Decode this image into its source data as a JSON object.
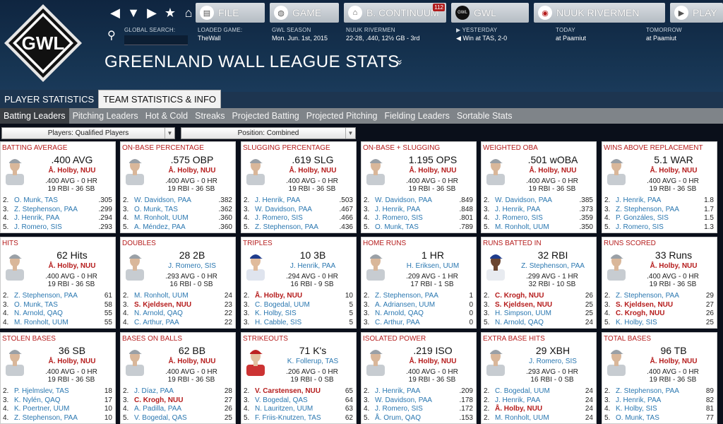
{
  "header": {
    "logo_text": "GWL",
    "nav_icons": [
      "back-icon",
      "menu-down-icon",
      "forward-icon",
      "star-icon",
      "home-icon"
    ],
    "buttons": [
      {
        "id": "file",
        "label": "FILE",
        "icon": "file-icon"
      },
      {
        "id": "game",
        "label": "GAME",
        "icon": "globe-icon"
      },
      {
        "id": "continuum",
        "label": "B. CONTINUUM",
        "icon": "home-icon",
        "badge": "112"
      },
      {
        "id": "gwl",
        "label": "GWL",
        "icon": "gwl-logo-icon"
      },
      {
        "id": "team",
        "label": "NUUK RIVERMEN",
        "icon": "team-logo-icon"
      },
      {
        "id": "play",
        "label": "PLAY",
        "icon": "play-icon"
      }
    ],
    "search_label": "GLOBAL SEARCH:",
    "search_value": "",
    "info": [
      {
        "label": "LOADED GAME:",
        "value": "TheWall"
      },
      {
        "label": "GWL SEASON",
        "value": "Mon. Jun. 1st, 2015"
      },
      {
        "label": "NUUK RIVERMEN",
        "value": "22-28, .440, 12½ GB - 3rd"
      },
      {
        "label": "YESTERDAY",
        "value": "Win at TAS, 2-0"
      },
      {
        "label": "TODAY",
        "value": "at Paamiut"
      },
      {
        "label": "TOMORROW",
        "value": "at Paamiut"
      }
    ],
    "title": "GREENLAND WALL LEAGUE STATS",
    "title_chevron": "»"
  },
  "tabs": [
    {
      "label": "PLAYER STATISTICS",
      "active": false
    },
    {
      "label": "TEAM STATISTICS & INFO",
      "active": true
    }
  ],
  "subnav": [
    {
      "label": "Batting Leaders",
      "active": true
    },
    {
      "label": "Pitching Leaders"
    },
    {
      "label": "Hot & Cold"
    },
    {
      "label": "Streaks"
    },
    {
      "label": "Projected Batting"
    },
    {
      "label": "Projected Pitching"
    },
    {
      "label": "Fielding Leaders"
    },
    {
      "label": "Sortable Stats"
    }
  ],
  "filters": {
    "players": "Players: Qualified Players",
    "position": "Position: Combined"
  },
  "cards": [
    {
      "title": "BATTING AVERAGE",
      "value": ".400 AVG",
      "leader": "Å. Holby, NUU",
      "red": true,
      "line1": ".400 AVG - 0 HR",
      "line2": "19 RBI - 36 SB",
      "avatar": "gray",
      "rows": [
        [
          "2.",
          "O. Munk, TAS",
          ".305"
        ],
        [
          "3.",
          "Z. Stephenson, PAA",
          ".299"
        ],
        [
          "4.",
          "J. Henrik, PAA",
          ".294"
        ],
        [
          "5.",
          "J. Romero, SIS",
          ".293"
        ]
      ]
    },
    {
      "title": "ON-BASE PERCENTAGE",
      "value": ".575 OBP",
      "leader": "Å. Holby, NUU",
      "red": true,
      "line1": ".400 AVG - 0 HR",
      "line2": "19 RBI - 36 SB",
      "avatar": "gray",
      "rows": [
        [
          "2.",
          "W. Davidson, PAA",
          ".382"
        ],
        [
          "3.",
          "O. Munk, TAS",
          ".362"
        ],
        [
          "4.",
          "M. Ronholt, UUM",
          ".360"
        ],
        [
          "5.",
          "A. Méndez, PAA",
          ".360"
        ]
      ]
    },
    {
      "title": "SLUGGING PERCENTAGE",
      "value": ".619 SLG",
      "leader": "Å. Holby, NUU",
      "red": true,
      "line1": ".400 AVG - 0 HR",
      "line2": "19 RBI - 36 SB",
      "avatar": "gray",
      "rows": [
        [
          "2.",
          "J. Henrik, PAA",
          ".503"
        ],
        [
          "3.",
          "W. Davidson, PAA",
          ".467"
        ],
        [
          "4.",
          "J. Romero, SIS",
          ".466"
        ],
        [
          "5.",
          "Z. Stephenson, PAA",
          ".436"
        ]
      ]
    },
    {
      "title": "ON-BASE + SLUGGING",
      "value": "1.195 OPS",
      "leader": "Å. Holby, NUU",
      "red": true,
      "line1": ".400 AVG - 0 HR",
      "line2": "19 RBI - 36 SB",
      "avatar": "gray",
      "rows": [
        [
          "2.",
          "W. Davidson, PAA",
          ".849"
        ],
        [
          "3.",
          "J. Henrik, PAA",
          ".848"
        ],
        [
          "4.",
          "J. Romero, SIS",
          ".801"
        ],
        [
          "5.",
          "O. Munk, TAS",
          ".789"
        ]
      ]
    },
    {
      "title": "WEIGHTED OBA",
      "value": ".501 wOBA",
      "leader": "Å. Holby, NUU",
      "red": true,
      "line1": ".400 AVG - 0 HR",
      "line2": "19 RBI - 36 SB",
      "avatar": "gray",
      "rows": [
        [
          "2.",
          "W. Davidson, PAA",
          ".385"
        ],
        [
          "3.",
          "J. Henrik, PAA",
          ".373"
        ],
        [
          "4.",
          "J. Romero, SIS",
          ".359"
        ],
        [
          "5.",
          "M. Ronholt, UUM",
          ".350"
        ]
      ]
    },
    {
      "title": "WINS ABOVE REPLACEMENT",
      "value": "5.1 WAR",
      "leader": "Å. Holby, NUU",
      "red": true,
      "line1": ".400 AVG - 0 HR",
      "line2": "19 RBI - 36 SB",
      "avatar": "gray",
      "rows": [
        [
          "2.",
          "J. Henrik, PAA",
          "1.8"
        ],
        [
          "3.",
          "Z. Stephenson, PAA",
          "1.7"
        ],
        [
          "4.",
          "P. Gonzáles, SIS",
          "1.5"
        ],
        [
          "5.",
          "J. Romero, SIS",
          "1.3"
        ]
      ]
    },
    {
      "title": "HITS",
      "value": "62 Hits",
      "leader": "Å. Holby, NUU",
      "red": true,
      "line1": ".400 AVG - 0 HR",
      "line2": "19 RBI - 36 SB",
      "avatar": "gray",
      "rows": [
        [
          "2.",
          "Z. Stephenson, PAA",
          "61"
        ],
        [
          "3.",
          "O. Munk, TAS",
          "58"
        ],
        [
          "4.",
          "N. Arnold, QAQ",
          "55"
        ],
        [
          "4.",
          "M. Ronholt, UUM",
          "55"
        ]
      ]
    },
    {
      "title": "DOUBLES",
      "value": "28 2B",
      "leader": "J. Romero, SIS",
      "red": false,
      "line1": ".293 AVG - 0 HR",
      "line2": "16 RBI - 0 SB",
      "avatar": "gray",
      "rows": [
        [
          "2.",
          "M. Ronholt, UUM",
          "24"
        ],
        [
          "3.",
          "S. Kjeldsen, NUU",
          "23"
        ],
        [
          "4.",
          "N. Arnold, QAQ",
          "22"
        ],
        [
          "4.",
          "C. Arthur, PAA",
          "22"
        ]
      ]
    },
    {
      "title": "TRIPLES",
      "value": "10 3B",
      "leader": "J. Henrik, PAA",
      "red": false,
      "line1": ".294 AVG - 0 HR",
      "line2": "16 RBI - 9 SB",
      "avatar": "blue",
      "rows": [
        [
          "2.",
          "Å. Holby, NUU",
          "10"
        ],
        [
          "3.",
          "C. Bogedal, UUM",
          "5"
        ],
        [
          "3.",
          "K. Holby, SIS",
          "5"
        ],
        [
          "3.",
          "H. Cabble, SIS",
          "5"
        ]
      ]
    },
    {
      "title": "HOME RUNS",
      "value": "1 HR",
      "leader": "H. Eriksen, UUM",
      "red": false,
      "line1": ".209 AVG - 1 HR",
      "line2": "17 RBI - 1 SB",
      "avatar": "gray",
      "rows": [
        [
          "2.",
          "Z. Stephenson, PAA",
          "1"
        ],
        [
          "3.",
          "A. Adriansen, UUM",
          "0"
        ],
        [
          "3.",
          "N. Arnold, QAQ",
          "0"
        ],
        [
          "3.",
          "C. Arthur, PAA",
          "0"
        ]
      ]
    },
    {
      "title": "RUNS BATTED IN",
      "value": "32 RBI",
      "leader": "Z. Stephenson, PAA",
      "red": false,
      "line1": ".299 AVG - 1 HR",
      "line2": "32 RBI - 10 SB",
      "avatar": "dark",
      "rows": [
        [
          "2.",
          "C. Krogh, NUU",
          "26"
        ],
        [
          "3.",
          "S. Kjeldsen, NUU",
          "25"
        ],
        [
          "3.",
          "H. Simpson, UUM",
          "25"
        ],
        [
          "5.",
          "N. Arnold, QAQ",
          "24"
        ]
      ]
    },
    {
      "title": "RUNS SCORED",
      "value": "33 Runs",
      "leader": "Å. Holby, NUU",
      "red": true,
      "line1": ".400 AVG - 0 HR",
      "line2": "19 RBI - 36 SB",
      "avatar": "gray",
      "rows": [
        [
          "2.",
          "Z. Stephenson, PAA",
          "29"
        ],
        [
          "3.",
          "S. Kjeldsen, NUU",
          "27"
        ],
        [
          "4.",
          "C. Krogh, NUU",
          "26"
        ],
        [
          "5.",
          "K. Holby, SIS",
          "25"
        ]
      ]
    },
    {
      "title": "STOLEN BASES",
      "value": "36 SB",
      "leader": "Å. Holby, NUU",
      "red": true,
      "line1": ".400 AVG - 0 HR",
      "line2": "19 RBI - 36 SB",
      "avatar": "gray",
      "rows": [
        [
          "2.",
          "P. Hjelmslev, TAS",
          "18"
        ],
        [
          "3.",
          "K. Nylén, QAQ",
          "17"
        ],
        [
          "4.",
          "K. Poertner, UUM",
          "10"
        ],
        [
          "4.",
          "Z. Stephenson, PAA",
          "10"
        ]
      ]
    },
    {
      "title": "BASES ON BALLS",
      "value": "62 BB",
      "leader": "Å. Holby, NUU",
      "red": true,
      "line1": ".400 AVG - 0 HR",
      "line2": "19 RBI - 36 SB",
      "avatar": "gray",
      "rows": [
        [
          "2.",
          "J. Díaz, PAA",
          "28"
        ],
        [
          "3.",
          "C. Krogh, NUU",
          "27"
        ],
        [
          "4.",
          "A. Padilla, PAA",
          "26"
        ],
        [
          "5.",
          "V. Bogedal, QAS",
          "25"
        ]
      ]
    },
    {
      "title": "STRIKEOUTS",
      "value": "71 K's",
      "leader": "K. Follerup, TAS",
      "red": false,
      "line1": ".206 AVG - 0 HR",
      "line2": "19 RBI - 0 SB",
      "avatar": "red",
      "rows": [
        [
          "2.",
          "V. Carstensen, NUU",
          "65"
        ],
        [
          "3.",
          "V. Bogedal, QAS",
          "64"
        ],
        [
          "4.",
          "N. Lauritzen, UUM",
          "63"
        ],
        [
          "5.",
          "F. Friis-Knutzen, TAS",
          "62"
        ]
      ]
    },
    {
      "title": "ISOLATED POWER",
      "value": ".219 ISO",
      "leader": "Å. Holby, NUU",
      "red": true,
      "line1": ".400 AVG - 0 HR",
      "line2": "19 RBI - 36 SB",
      "avatar": "gray",
      "rows": [
        [
          "2.",
          "J. Henrik, PAA",
          ".209"
        ],
        [
          "3.",
          "W. Davidson, PAA",
          ".178"
        ],
        [
          "4.",
          "J. Romero, SIS",
          ".172"
        ],
        [
          "5.",
          "Å. Orum, QAQ",
          ".153"
        ]
      ]
    },
    {
      "title": "EXTRA BASE HITS",
      "value": "29 XBH",
      "leader": "J. Romero, SIS",
      "red": false,
      "line1": ".293 AVG - 0 HR",
      "line2": "16 RBI - 0 SB",
      "avatar": "gray",
      "rows": [
        [
          "2.",
          "C. Bogedal, UUM",
          "24"
        ],
        [
          "2.",
          "J. Henrik, PAA",
          "24"
        ],
        [
          "2.",
          "Å. Holby, NUU",
          "24"
        ],
        [
          "2.",
          "M. Ronholt, UUM",
          "24"
        ]
      ]
    },
    {
      "title": "TOTAL BASES",
      "value": "96 TB",
      "leader": "Å. Holby, NUU",
      "red": true,
      "line1": ".400 AVG - 0 HR",
      "line2": "19 RBI - 36 SB",
      "avatar": "gray",
      "rows": [
        [
          "2.",
          "Z. Stephenson, PAA",
          "89"
        ],
        [
          "3.",
          "J. Henrik, PAA",
          "82"
        ],
        [
          "4.",
          "K. Holby, SIS",
          "81"
        ],
        [
          "5.",
          "O. Munk, TAS",
          "77"
        ]
      ]
    }
  ],
  "colors": {
    "accent_red": "#b51c1c",
    "link_blue": "#2a77b0",
    "header_bg": "#15324f"
  }
}
